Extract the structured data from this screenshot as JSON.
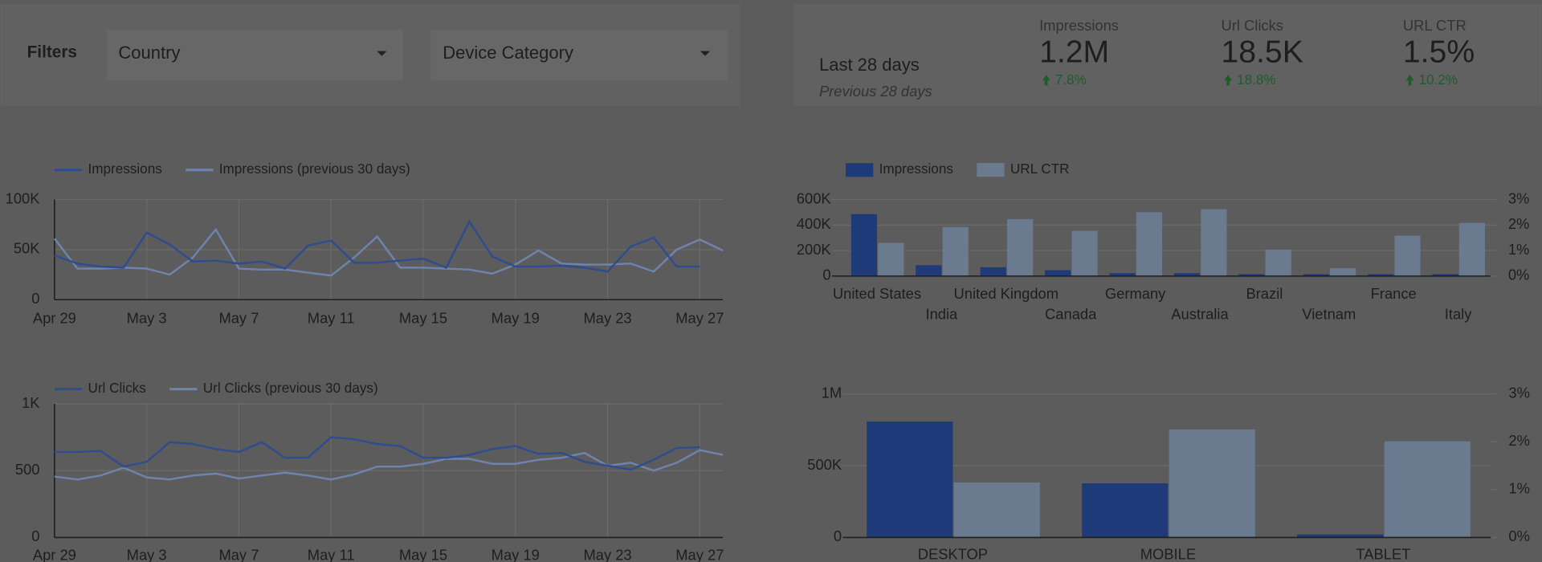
{
  "filters": {
    "title": "Filters",
    "controls": [
      "Country",
      "Device Category"
    ]
  },
  "scorecard": {
    "period": "Last 28 days",
    "comparison": "Previous 28 days",
    "metrics": [
      {
        "label": "Impressions",
        "value": "1.2M",
        "change": "7.8%"
      },
      {
        "label": "Url Clicks",
        "value": "18.5K",
        "change": "18.8%"
      },
      {
        "label": "URL CTR",
        "value": "1.5%",
        "change": "10.2%"
      }
    ]
  },
  "chart_data": [
    {
      "type": "line",
      "categories": [
        "Apr 29",
        null,
        null,
        null,
        "May 3",
        null,
        null,
        null,
        "May 7",
        null,
        null,
        null,
        "May 11",
        null,
        null,
        null,
        "May 15",
        null,
        null,
        null,
        "May 19",
        null,
        null,
        null,
        "May 23",
        null,
        null,
        null,
        "May 27",
        null
      ],
      "series": [
        {
          "name": "Impressions",
          "color": "#2f4c8f",
          "values": [
            44000,
            36000,
            33000,
            32000,
            67000,
            55000,
            38000,
            39000,
            36000,
            38000,
            31000,
            54000,
            59000,
            37000,
            37000,
            39000,
            41000,
            32000,
            78000,
            43000,
            33000,
            33000,
            34000,
            32000,
            28000,
            53000,
            62000,
            33000,
            33000,
            null
          ]
        },
        {
          "name": "Impressions (previous 30 days)",
          "color": "#6e84ad",
          "values": [
            61000,
            31000,
            31000,
            32000,
            31000,
            25000,
            42000,
            70000,
            31000,
            30000,
            30000,
            27000,
            24000,
            42000,
            63000,
            32000,
            32000,
            31000,
            30000,
            26000,
            35000,
            49000,
            36000,
            35000,
            35000,
            36000,
            28000,
            50000,
            60000,
            49000
          ]
        }
      ],
      "ylim": [
        0,
        100000
      ],
      "yticks": [
        0,
        {
          "value": 50000,
          "label": "50K"
        },
        {
          "value": 100000,
          "label": "100K"
        }
      ],
      "grid": true
    },
    {
      "type": "line",
      "categories": [
        "Apr 29",
        null,
        null,
        null,
        "May 3",
        null,
        null,
        null,
        "May 7",
        null,
        null,
        null,
        "May 11",
        null,
        null,
        null,
        "May 15",
        null,
        null,
        null,
        "May 19",
        null,
        null,
        null,
        "May 23",
        null,
        null,
        null,
        "May 27",
        null
      ],
      "series": [
        {
          "name": "Url Clicks",
          "color": "#2f4c8f",
          "values": [
            640,
            640,
            647,
            530,
            566,
            713,
            699,
            662,
            640,
            713,
            596,
            596,
            750,
            735,
            699,
            684,
            596,
            596,
            618,
            662,
            684,
            625,
            632,
            566,
            537,
            507,
            581,
            669,
            676,
            null
          ]
        },
        {
          "name": "Url Clicks (previous 30 days)",
          "color": "#6e84ad",
          "values": [
            456,
            434,
            463,
            522,
            449,
            434,
            463,
            478,
            441,
            463,
            485,
            463,
            434,
            471,
            530,
            530,
            551,
            588,
            588,
            551,
            551,
            581,
            596,
            632,
            537,
            559,
            500,
            559,
            654,
            618
          ]
        }
      ],
      "ylim": [
        0,
        1000
      ],
      "yticks": [
        0,
        500,
        {
          "value": 1000,
          "label": "1K"
        }
      ],
      "grid": true
    },
    {
      "type": "bar",
      "categories": [
        "United States",
        "India",
        "United Kingdom",
        "Canada",
        "Germany",
        "Australia",
        "Brazil",
        "Vietnam",
        "France",
        "Italy"
      ],
      "series": [
        {
          "name": "Impressions",
          "color": "#1f3a78",
          "values": [
            485000,
            85000,
            69000,
            46000,
            23000,
            23000,
            15000,
            15000,
            15000,
            15000
          ]
        },
        {
          "name": "URL CTR",
          "color": "#6a7b90",
          "axis": "y2",
          "values": [
            1.3,
            1.92,
            2.23,
            1.77,
            2.5,
            2.62,
            1.04,
            0.31,
            1.58,
            2.08
          ]
        }
      ],
      "ylim": [
        0,
        600000
      ],
      "yticks": [
        0,
        {
          "value": 200000,
          "label": "200K"
        },
        {
          "value": 400000,
          "label": "400K"
        },
        {
          "value": 600000,
          "label": "600K"
        }
      ],
      "y2lim": [
        0,
        3
      ],
      "y2ticks": [
        {
          "value": 0,
          "label": "0%"
        },
        {
          "value": 1,
          "label": "1%"
        },
        {
          "value": 2,
          "label": "2%"
        },
        {
          "value": 3,
          "label": "3%"
        }
      ],
      "grid": true
    },
    {
      "type": "bar",
      "categories": [
        "DESKTOP",
        "MOBILE",
        "TABLET"
      ],
      "series": [
        {
          "name": "Impressions",
          "color": "#1f3a78",
          "values": [
            808000,
            377000,
            21000
          ]
        },
        {
          "name": "URL CTR",
          "color": "#6a7b90",
          "axis": "y2",
          "values": [
            1.15,
            2.26,
            2.01
          ]
        }
      ],
      "ylim": [
        0,
        1000000
      ],
      "yticks": [
        0,
        {
          "value": 500000,
          "label": "500K"
        },
        {
          "value": 1000000,
          "label": "1M"
        }
      ],
      "y2lim": [
        0,
        3
      ],
      "y2ticks": [
        {
          "value": 0,
          "label": "0%"
        },
        {
          "value": 1,
          "label": "1%"
        },
        {
          "value": 2,
          "label": "2%"
        },
        {
          "value": 3,
          "label": "3%"
        }
      ],
      "grid": true
    }
  ]
}
